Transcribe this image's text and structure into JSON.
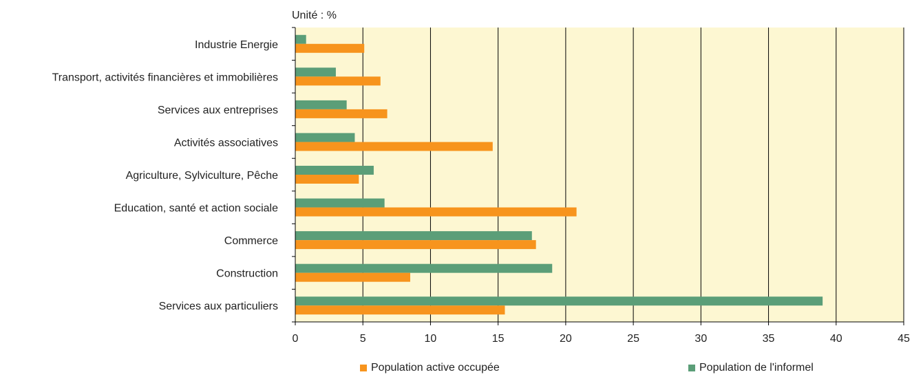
{
  "chart_data": {
    "type": "bar",
    "orientation": "horizontal",
    "unit_label": "Unité : %",
    "categories": [
      "Industrie Energie",
      "Transport, activités financières et immobilières",
      "Services aux entreprises",
      "Activités associatives",
      "Agriculture, Sylviculture, Pêche",
      "Education, santé et action sociale",
      "Commerce",
      "Construction",
      "Services aux particuliers"
    ],
    "series": [
      {
        "name": "Population de l'informel",
        "color": "#5b9e78",
        "values": [
          0.8,
          3.0,
          3.8,
          4.4,
          5.8,
          6.6,
          17.5,
          19.0,
          39.0
        ]
      },
      {
        "name": "Population active occupée",
        "color": "#f7941d",
        "values": [
          5.1,
          6.3,
          6.8,
          14.6,
          4.7,
          20.8,
          17.8,
          8.5,
          15.5
        ]
      }
    ],
    "xlim": [
      0,
      45
    ],
    "xticks": [
      0,
      5,
      10,
      15,
      20,
      25,
      30,
      35,
      40,
      45
    ],
    "grid": true,
    "background_color": "#fdf7d2",
    "legend_position": "bottom"
  }
}
